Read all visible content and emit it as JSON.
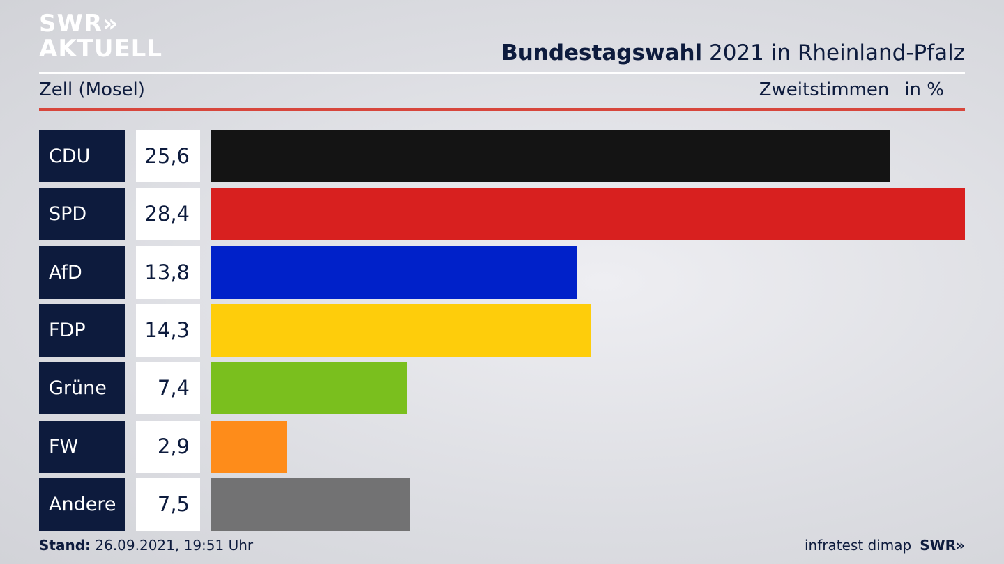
{
  "brand": {
    "line1": "SWR»",
    "line2": "AKTUELL"
  },
  "headline": {
    "bold": "Bundestagswahl",
    "rest": " 2021 in Rheinland-Pfalz"
  },
  "subtitle": "Zell (Mosel)",
  "measure": {
    "label": "Zweitstimmen",
    "unit": "in %"
  },
  "chart_data": {
    "type": "bar",
    "orientation": "horizontal",
    "categories": [
      "CDU",
      "SPD",
      "AfD",
      "FDP",
      "Grüne",
      "FW",
      "Andere"
    ],
    "values": [
      25.6,
      28.4,
      13.8,
      14.3,
      7.4,
      2.9,
      7.5
    ],
    "value_labels": [
      "25,6",
      "28,4",
      "13,8",
      "14,3",
      "7,4",
      "2,9",
      "7,5"
    ],
    "colors": [
      "#141414",
      "#d8201f",
      "#0021c9",
      "#fecd0b",
      "#7abf1e",
      "#fe8c1a",
      "#727273"
    ],
    "xlim": [
      0,
      28.4
    ],
    "grid": false
  },
  "footer": {
    "stand_label": "Stand:",
    "stand_value": " 26.09.2021, 19:51 Uhr",
    "source": "infratest dimap",
    "brand": "SWR»"
  }
}
